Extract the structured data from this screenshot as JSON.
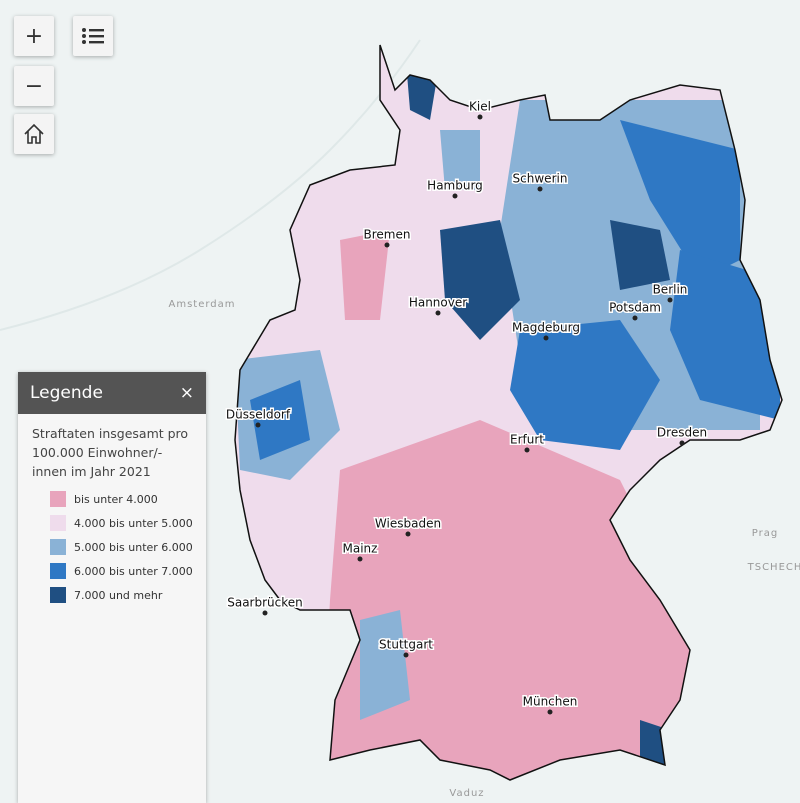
{
  "controls": {
    "zoom_in": "+",
    "zoom_out": "−"
  },
  "legend": {
    "title": "Legende",
    "close": "×",
    "description": "Straftaten insgesamt pro 100.000 Einwohner/-innen im Jahr 2021",
    "items": [
      {
        "label": "bis unter 4.000",
        "color": "#e8a4bc"
      },
      {
        "label": "4.000 bis unter 5.000",
        "color": "#efdcec"
      },
      {
        "label": "5.000 bis unter 6.000",
        "color": "#8ab2d6"
      },
      {
        "label": "6.000 bis unter 7.000",
        "color": "#2f78c4"
      },
      {
        "label": "7.000 und mehr",
        "color": "#1f4f82"
      }
    ]
  },
  "cities": [
    "Kiel",
    "Hamburg",
    "Schwerin",
    "Bremen",
    "Hannover",
    "Berlin",
    "Potsdam",
    "Magdeburg",
    "Düsseldorf",
    "Erfurt",
    "Dresden",
    "Wiesbaden",
    "Mainz",
    "Saarbrücken",
    "Stuttgart",
    "München"
  ],
  "basemap_labels": [
    "Amsterdam",
    "Prag",
    "TSCHECH",
    "Vaduz"
  ]
}
